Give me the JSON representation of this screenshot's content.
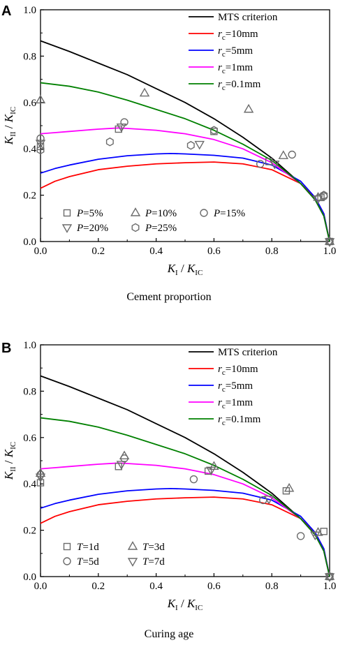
{
  "chart_data": [
    {
      "panel": "A",
      "type": "line",
      "caption": "Cement proportion",
      "xlabel": {
        "main": "K",
        "sub": "I",
        "sep": " / ",
        "main2": "K",
        "sub2": "IC"
      },
      "ylabel": {
        "main": "K",
        "sub": "II",
        "sep": " / ",
        "main2": "K",
        "sub2": "IC"
      },
      "xlim": [
        0,
        1.0
      ],
      "ylim": [
        0,
        1.0
      ],
      "xticks": [
        "0.0",
        "0.2",
        "0.4",
        "0.6",
        "0.8",
        "1.0"
      ],
      "yticks": [
        "0.0",
        "0.2",
        "0.4",
        "0.6",
        "0.8",
        "1.0"
      ],
      "lines": [
        {
          "name": "MTS criterion",
          "color": "#000000",
          "rc": null,
          "x": [
            0.0,
            0.1,
            0.2,
            0.3,
            0.4,
            0.5,
            0.6,
            0.7,
            0.8,
            0.9,
            0.95,
            0.98,
            1.0
          ],
          "y": [
            0.866,
            0.82,
            0.77,
            0.72,
            0.66,
            0.6,
            0.53,
            0.45,
            0.36,
            0.25,
            0.18,
            0.11,
            0.0
          ]
        },
        {
          "name": "rc=10mm",
          "color": "#ff0000",
          "rc": "=10mm",
          "x": [
            0.0,
            0.05,
            0.1,
            0.2,
            0.3,
            0.4,
            0.5,
            0.6,
            0.7,
            0.8,
            0.9,
            0.95,
            0.98,
            1.0
          ],
          "y": [
            0.23,
            0.26,
            0.28,
            0.31,
            0.325,
            0.335,
            0.34,
            0.343,
            0.335,
            0.31,
            0.25,
            0.19,
            0.12,
            0.0
          ]
        },
        {
          "name": "rc=5mm",
          "color": "#0000ff",
          "rc": "=5mm",
          "x": [
            0.0,
            0.05,
            0.1,
            0.2,
            0.3,
            0.4,
            0.45,
            0.5,
            0.6,
            0.7,
            0.8,
            0.9,
            0.95,
            0.98,
            1.0
          ],
          "y": [
            0.295,
            0.315,
            0.33,
            0.355,
            0.37,
            0.378,
            0.38,
            0.378,
            0.372,
            0.36,
            0.33,
            0.26,
            0.19,
            0.12,
            0.0
          ]
        },
        {
          "name": "rc=1mm",
          "color": "#ff00ff",
          "rc": "=1mm",
          "x": [
            0.0,
            0.05,
            0.1,
            0.2,
            0.27,
            0.3,
            0.4,
            0.5,
            0.6,
            0.7,
            0.8,
            0.9,
            0.95,
            0.98,
            1.0
          ],
          "y": [
            0.465,
            0.47,
            0.475,
            0.485,
            0.49,
            0.488,
            0.48,
            0.465,
            0.44,
            0.4,
            0.34,
            0.25,
            0.18,
            0.11,
            0.0
          ]
        },
        {
          "name": "rc=0.1mm",
          "color": "#008000",
          "rc": "=0.1mm",
          "x": [
            0.0,
            0.1,
            0.2,
            0.3,
            0.4,
            0.5,
            0.6,
            0.7,
            0.8,
            0.9,
            0.95,
            0.98,
            1.0
          ],
          "y": [
            0.685,
            0.67,
            0.645,
            0.61,
            0.57,
            0.53,
            0.48,
            0.42,
            0.35,
            0.25,
            0.18,
            0.11,
            0.0
          ]
        }
      ],
      "markers": [
        {
          "label": "P=5%",
          "var": "P",
          "value": "=5%",
          "shape": "square",
          "points": [
            [
              0.0,
              0.41
            ],
            [
              0.27,
              0.485
            ],
            [
              0.6,
              0.475
            ],
            [
              0.79,
              0.345
            ],
            [
              0.97,
              0.19
            ],
            [
              1.0,
              0.0
            ]
          ]
        },
        {
          "label": "P=10%",
          "var": "P",
          "value": "=10%",
          "shape": "triangle-up",
          "points": [
            [
              0.0,
              0.61
            ],
            [
              0.36,
              0.64
            ],
            [
              0.72,
              0.57
            ],
            [
              0.84,
              0.37
            ],
            [
              0.96,
              0.19
            ],
            [
              1.0,
              0.0
            ]
          ]
        },
        {
          "label": "P=15%",
          "var": "P",
          "value": "=15%",
          "shape": "circle",
          "points": [
            [
              0.0,
              0.445
            ],
            [
              0.29,
              0.515
            ],
            [
              0.76,
              0.335
            ],
            [
              0.87,
              0.375
            ],
            [
              0.98,
              0.195
            ],
            [
              1.0,
              0.0
            ]
          ]
        },
        {
          "label": "P=20%",
          "var": "P",
          "value": "=20%",
          "shape": "triangle-down",
          "points": [
            [
              0.0,
              0.425
            ],
            [
              0.28,
              0.495
            ],
            [
              0.55,
              0.42
            ],
            [
              0.81,
              0.335
            ],
            [
              0.96,
              0.185
            ],
            [
              1.0,
              0.0
            ]
          ]
        },
        {
          "label": "P=25%",
          "var": "P",
          "value": "=25%",
          "shape": "hexagon",
          "points": [
            [
              0.0,
              0.395
            ],
            [
              0.24,
              0.43
            ],
            [
              0.52,
              0.415
            ],
            [
              0.6,
              0.48
            ],
            [
              0.98,
              0.2
            ],
            [
              1.0,
              0.0
            ]
          ]
        }
      ],
      "legend_cols": 3
    },
    {
      "panel": "B",
      "type": "line",
      "caption": "Curing age",
      "xlabel": {
        "main": "K",
        "sub": "I",
        "sep": " / ",
        "main2": "K",
        "sub2": "IC"
      },
      "ylabel": {
        "main": "K",
        "sub": "II",
        "sep": " / ",
        "main2": "K",
        "sub2": "IC"
      },
      "xlim": [
        0,
        1.0
      ],
      "ylim": [
        0,
        1.0
      ],
      "xticks": [
        "0.0",
        "0.2",
        "0.4",
        "0.6",
        "0.8",
        "1.0"
      ],
      "yticks": [
        "0.0",
        "0.2",
        "0.4",
        "0.6",
        "0.8",
        "1.0"
      ],
      "lines": [
        {
          "name": "MTS criterion",
          "color": "#000000",
          "rc": null,
          "x": [
            0.0,
            0.1,
            0.2,
            0.3,
            0.4,
            0.5,
            0.6,
            0.7,
            0.8,
            0.9,
            0.95,
            0.98,
            1.0
          ],
          "y": [
            0.866,
            0.82,
            0.77,
            0.72,
            0.66,
            0.6,
            0.53,
            0.45,
            0.36,
            0.25,
            0.18,
            0.11,
            0.0
          ]
        },
        {
          "name": "rc=10mm",
          "color": "#ff0000",
          "rc": "=10mm",
          "x": [
            0.0,
            0.05,
            0.1,
            0.2,
            0.3,
            0.4,
            0.5,
            0.6,
            0.7,
            0.8,
            0.9,
            0.95,
            0.98,
            1.0
          ],
          "y": [
            0.23,
            0.26,
            0.28,
            0.31,
            0.325,
            0.335,
            0.34,
            0.343,
            0.335,
            0.31,
            0.25,
            0.19,
            0.12,
            0.0
          ]
        },
        {
          "name": "rc=5mm",
          "color": "#0000ff",
          "rc": "=5mm",
          "x": [
            0.0,
            0.05,
            0.1,
            0.2,
            0.3,
            0.4,
            0.45,
            0.5,
            0.6,
            0.7,
            0.8,
            0.9,
            0.95,
            0.98,
            1.0
          ],
          "y": [
            0.295,
            0.315,
            0.33,
            0.355,
            0.37,
            0.378,
            0.38,
            0.378,
            0.372,
            0.36,
            0.33,
            0.26,
            0.19,
            0.12,
            0.0
          ]
        },
        {
          "name": "rc=1mm",
          "color": "#ff00ff",
          "rc": "=1mm",
          "x": [
            0.0,
            0.05,
            0.1,
            0.2,
            0.27,
            0.3,
            0.4,
            0.5,
            0.6,
            0.7,
            0.8,
            0.9,
            0.95,
            0.98,
            1.0
          ],
          "y": [
            0.465,
            0.47,
            0.475,
            0.485,
            0.49,
            0.488,
            0.48,
            0.465,
            0.44,
            0.4,
            0.34,
            0.25,
            0.18,
            0.11,
            0.0
          ]
        },
        {
          "name": "rc=0.1mm",
          "color": "#008000",
          "rc": "=0.1mm",
          "x": [
            0.0,
            0.1,
            0.2,
            0.3,
            0.4,
            0.5,
            0.6,
            0.7,
            0.8,
            0.9,
            0.95,
            0.98,
            1.0
          ],
          "y": [
            0.685,
            0.67,
            0.645,
            0.61,
            0.57,
            0.53,
            0.48,
            0.42,
            0.35,
            0.25,
            0.18,
            0.11,
            0.0
          ]
        }
      ],
      "markers": [
        {
          "label": "T=1d",
          "var": "T",
          "value": "=1d",
          "shape": "square",
          "points": [
            [
              0.0,
              0.405
            ],
            [
              0.27,
              0.475
            ],
            [
              0.58,
              0.455
            ],
            [
              0.85,
              0.37
            ],
            [
              0.98,
              0.195
            ],
            [
              1.0,
              0.0
            ]
          ]
        },
        {
          "label": "T=3d",
          "var": "T",
          "value": "=3d",
          "shape": "triangle-up",
          "points": [
            [
              0.0,
              0.445
            ],
            [
              0.29,
              0.52
            ],
            [
              0.6,
              0.475
            ],
            [
              0.86,
              0.38
            ],
            [
              0.96,
              0.19
            ],
            [
              1.0,
              0.0
            ]
          ]
        },
        {
          "label": "T=5d",
          "var": "T",
          "value": "=5d",
          "shape": "circle",
          "points": [
            [
              0.0,
              0.44
            ],
            [
              0.29,
              0.51
            ],
            [
              0.53,
              0.42
            ],
            [
              0.77,
              0.33
            ],
            [
              0.9,
              0.175
            ],
            [
              1.0,
              0.0
            ]
          ]
        },
        {
          "label": "T=7d",
          "var": "T",
          "value": "=7d",
          "shape": "triangle-down",
          "points": [
            [
              0.0,
              0.43
            ],
            [
              0.28,
              0.485
            ],
            [
              0.59,
              0.46
            ],
            [
              0.79,
              0.335
            ],
            [
              0.95,
              0.18
            ],
            [
              1.0,
              0.0
            ]
          ]
        }
      ],
      "legend_cols": 2
    }
  ]
}
